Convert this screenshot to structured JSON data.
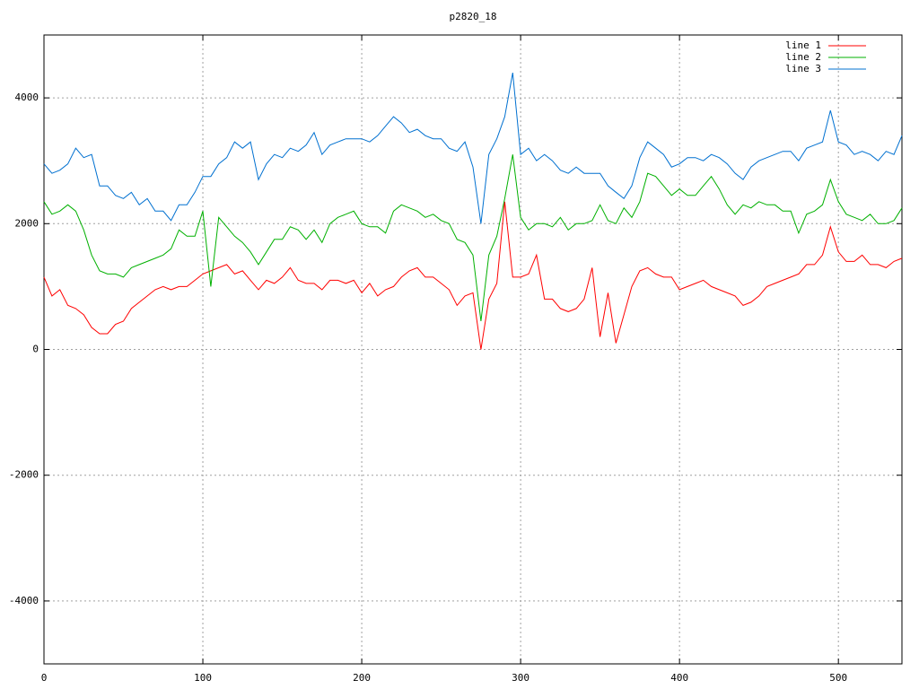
{
  "chart_data": {
    "type": "line",
    "title": "p2820_18",
    "x": [
      0,
      5,
      10,
      15,
      20,
      25,
      30,
      35,
      40,
      45,
      50,
      55,
      60,
      65,
      70,
      75,
      80,
      85,
      90,
      95,
      100,
      105,
      110,
      115,
      120,
      125,
      130,
      135,
      140,
      145,
      150,
      155,
      160,
      165,
      170,
      175,
      180,
      185,
      190,
      195,
      200,
      205,
      210,
      215,
      220,
      225,
      230,
      235,
      240,
      245,
      250,
      255,
      260,
      265,
      270,
      275,
      280,
      285,
      290,
      295,
      300,
      305,
      310,
      315,
      320,
      325,
      330,
      335,
      340,
      345,
      350,
      355,
      360,
      365,
      370,
      375,
      380,
      385,
      390,
      395,
      400,
      405,
      410,
      415,
      420,
      425,
      430,
      435,
      440,
      445,
      450,
      455,
      460,
      465,
      470,
      475,
      480,
      485,
      490,
      495,
      500,
      505,
      510,
      515,
      520,
      525,
      530,
      535,
      540
    ],
    "series": [
      {
        "name": "line 1",
        "color": "#ff0000",
        "values": [
          1150,
          850,
          950,
          700,
          650,
          550,
          350,
          250,
          250,
          400,
          450,
          650,
          750,
          850,
          950,
          1000,
          950,
          1000,
          1000,
          1100,
          1200,
          1250,
          1300,
          1350,
          1200,
          1250,
          1100,
          950,
          1100,
          1050,
          1150,
          1300,
          1100,
          1050,
          1050,
          950,
          1100,
          1100,
          1050,
          1100,
          900,
          1050,
          850,
          950,
          1000,
          1150,
          1250,
          1300,
          1150,
          1150,
          1050,
          950,
          700,
          850,
          900,
          0,
          800,
          1050,
          2350,
          1150,
          1150,
          1200,
          1500,
          800,
          800,
          650,
          600,
          650,
          800,
          1300,
          200,
          900,
          100,
          550,
          1000,
          1250,
          1300,
          1200,
          1150,
          1150,
          950,
          1000,
          1050,
          1100,
          1000,
          950,
          900,
          850,
          700,
          750,
          850,
          1000,
          1050,
          1100,
          1150,
          1200,
          1350,
          1350,
          1500,
          1950,
          1550,
          1400,
          1400,
          1500,
          1350,
          1350,
          1300,
          1400,
          1450
        ]
      },
      {
        "name": "line 2",
        "color": "#00b000",
        "values": [
          2350,
          2150,
          2200,
          2300,
          2200,
          1900,
          1500,
          1250,
          1200,
          1200,
          1150,
          1300,
          1350,
          1400,
          1450,
          1500,
          1600,
          1900,
          1800,
          1800,
          2200,
          1000,
          2100,
          1950,
          1800,
          1700,
          1550,
          1350,
          1550,
          1750,
          1750,
          1950,
          1900,
          1750,
          1900,
          1700,
          2000,
          2100,
          2150,
          2200,
          2000,
          1950,
          1950,
          1850,
          2200,
          2300,
          2250,
          2200,
          2100,
          2150,
          2050,
          2000,
          1750,
          1700,
          1500,
          450,
          1500,
          1800,
          2400,
          3100,
          2100,
          1900,
          2000,
          2000,
          1950,
          2100,
          1900,
          2000,
          2000,
          2050,
          2300,
          2050,
          2000,
          2250,
          2100,
          2350,
          2800,
          2750,
          2600,
          2450,
          2550,
          2450,
          2450,
          2600,
          2750,
          2550,
          2300,
          2150,
          2300,
          2250,
          2350,
          2300,
          2300,
          2200,
          2200,
          1850,
          2150,
          2200,
          2300,
          2700,
          2350,
          2150,
          2100,
          2050,
          2150,
          2000,
          2000,
          2050,
          2250
        ]
      },
      {
        "name": "line 3",
        "color": "#0070d0",
        "values": [
          2950,
          2800,
          2850,
          2950,
          3200,
          3050,
          3100,
          2600,
          2600,
          2450,
          2400,
          2500,
          2300,
          2400,
          2200,
          2200,
          2050,
          2300,
          2300,
          2500,
          2750,
          2750,
          2950,
          3050,
          3300,
          3200,
          3300,
          2700,
          2950,
          3100,
          3050,
          3200,
          3150,
          3250,
          3450,
          3100,
          3250,
          3300,
          3350,
          3350,
          3350,
          3300,
          3400,
          3550,
          3700,
          3600,
          3450,
          3500,
          3400,
          3350,
          3350,
          3200,
          3150,
          3300,
          2900,
          2000,
          3100,
          3350,
          3700,
          4400,
          3100,
          3200,
          3000,
          3100,
          3000,
          2850,
          2800,
          2900,
          2800,
          2800,
          2800,
          2600,
          2500,
          2400,
          2600,
          3050,
          3300,
          3200,
          3100,
          2900,
          2950,
          3050,
          3050,
          3000,
          3100,
          3050,
          2950,
          2800,
          2700,
          2900,
          3000,
          3050,
          3100,
          3150,
          3150,
          3000,
          3200,
          3250,
          3300,
          3800,
          3300,
          3250,
          3100,
          3150,
          3100,
          3000,
          3150,
          3100,
          3400
        ]
      }
    ],
    "xlim": [
      0,
      540
    ],
    "xticks": [
      0,
      100,
      200,
      300,
      400,
      500
    ],
    "ylim": [
      -5000,
      5000
    ],
    "yticks": [
      -4000,
      -2000,
      0,
      2000,
      4000
    ],
    "grid": true,
    "legend": "top-right"
  }
}
